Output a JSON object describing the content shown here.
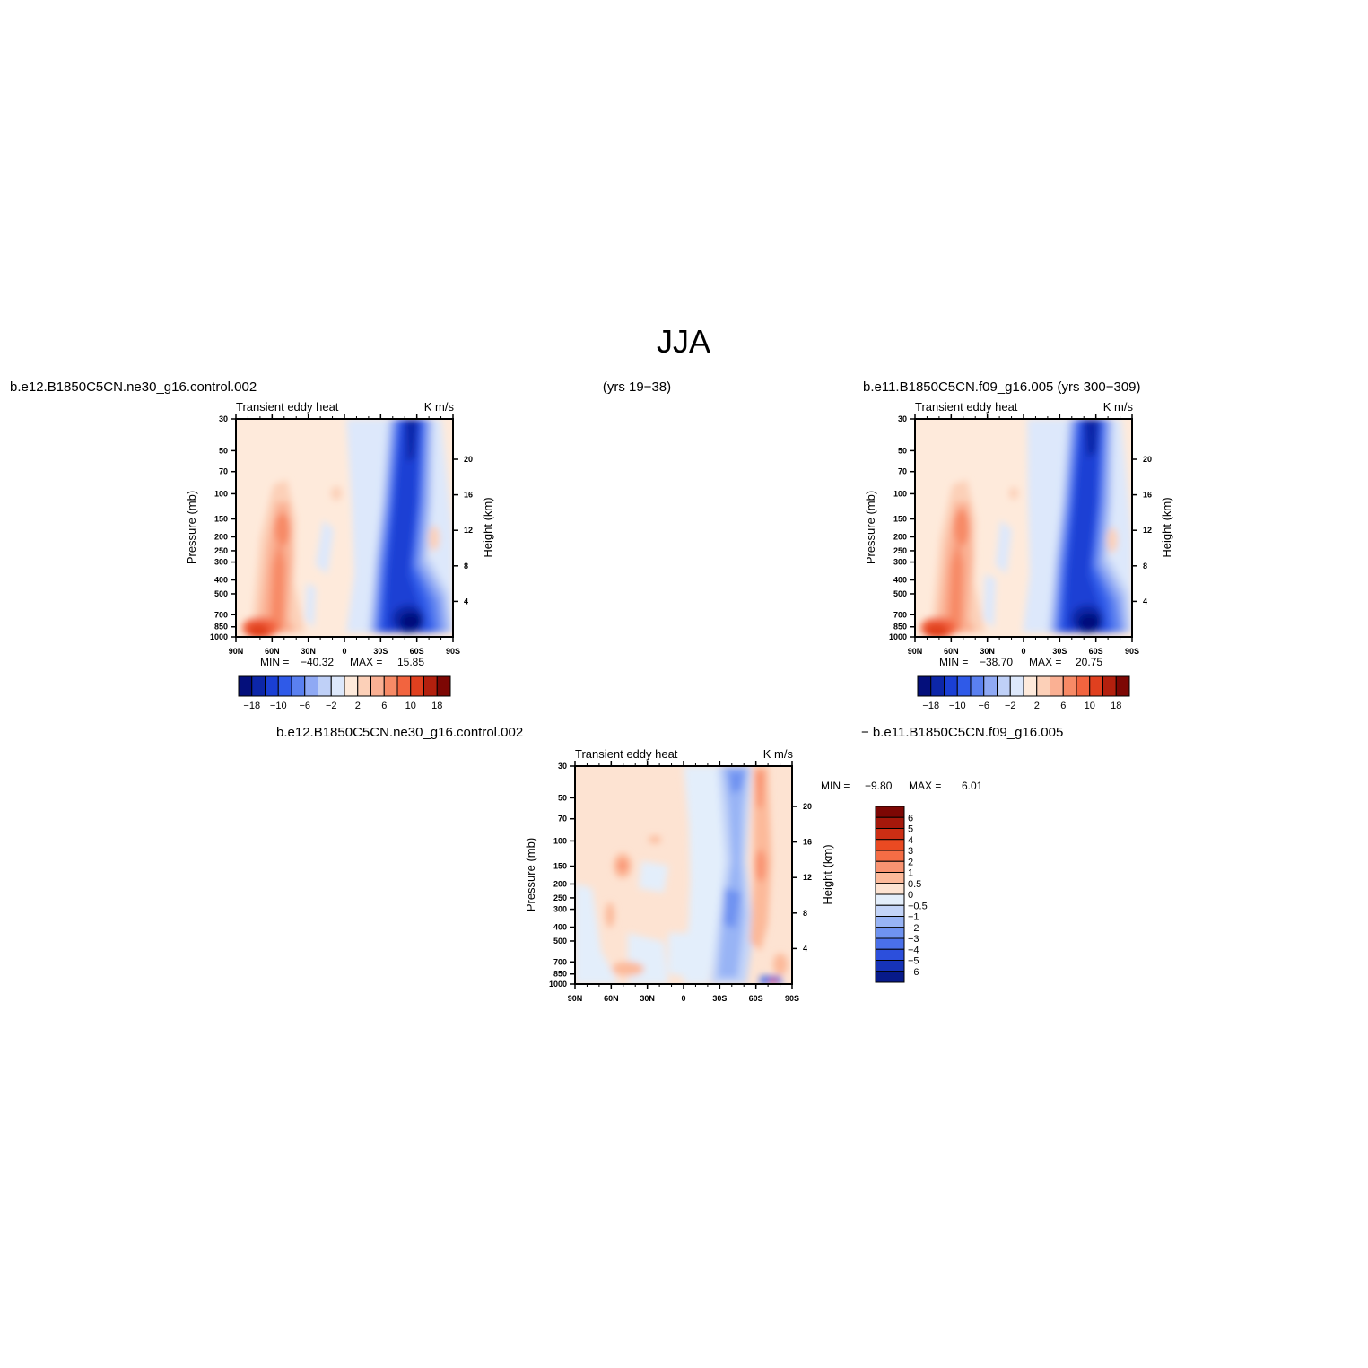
{
  "figure": {
    "title": "JJA",
    "panel1_caption": "b.e12.B1850C5CN.ne30_g16.control.002",
    "years_left": "(yrs 19−38)",
    "panel2_caption": "b.e11.B1850C5CN.f09_g16.005 (yrs 300−309)",
    "diff_caption_left": "b.e12.B1850C5CN.ne30_g16.control.002",
    "diff_caption_right": "− b.e11.B1850C5CN.f09_g16.005"
  },
  "chart_data": [
    {
      "type": "heatmap",
      "panel": "control",
      "title": "Transient eddy heat",
      "units": "K m/s",
      "ylabel": "Pressure (mb)",
      "ylabel_right": "Height (km)",
      "x_ticks": [
        "90N",
        "60N",
        "30N",
        "0",
        "30S",
        "60S",
        "90S"
      ],
      "y_ticks": [
        30,
        50,
        70,
        100,
        150,
        200,
        250,
        300,
        400,
        500,
        700,
        850,
        1000
      ],
      "y_right_ticks": [
        20,
        16,
        12,
        8,
        4
      ],
      "ylim": [
        1000,
        30
      ],
      "y_scale": "log",
      "min_label": "MIN =",
      "min": "−40.32",
      "max_label": "MAX =",
      "max": "15.85",
      "features": [
        {
          "lat": 70,
          "p": 200,
          "value": 8
        },
        {
          "lat": 75,
          "p": 950,
          "value": 16
        },
        {
          "lat": 5,
          "p": 600,
          "value": 1
        },
        {
          "lat": -58,
          "p": 30,
          "value": -20
        },
        {
          "lat": -55,
          "p": 880,
          "value": -40
        },
        {
          "lat": -48,
          "p": 300,
          "value": -14
        },
        {
          "lat": -80,
          "p": 220,
          "value": 4
        }
      ],
      "colorbar": {
        "labels": [
          "−18",
          "−10",
          "−6",
          "−2",
          "2",
          "6",
          "10",
          "18"
        ],
        "colors": [
          "#040f7b",
          "#0c26a8",
          "#1a3fd4",
          "#2f5ae8",
          "#5a80f0",
          "#8fa9f4",
          "#bfd0f7",
          "#dde8fb",
          "#feeadb",
          "#fcd0b8",
          "#fab093",
          "#f78a66",
          "#f2643f",
          "#e0401f",
          "#b3200e",
          "#7d0704"
        ]
      }
    },
    {
      "type": "heatmap",
      "panel": "case",
      "title": "Transient eddy heat",
      "units": "K m/s",
      "ylabel": "Pressure (mb)",
      "ylabel_right": "Height (km)",
      "x_ticks": [
        "90N",
        "60N",
        "30N",
        "0",
        "30S",
        "60S",
        "90S"
      ],
      "y_ticks": [
        30,
        50,
        70,
        100,
        150,
        200,
        250,
        300,
        400,
        500,
        700,
        850,
        1000
      ],
      "y_right_ticks": [
        20,
        16,
        12,
        8,
        4
      ],
      "ylim": [
        1000,
        30
      ],
      "y_scale": "log",
      "min_label": "MIN =",
      "min": "−38.70",
      "max_label": "MAX =",
      "max": "20.75",
      "features": [
        {
          "lat": 70,
          "p": 190,
          "value": 10
        },
        {
          "lat": 75,
          "p": 950,
          "value": 20
        },
        {
          "lat": -58,
          "p": 30,
          "value": -22
        },
        {
          "lat": -52,
          "p": 880,
          "value": -38
        },
        {
          "lat": -46,
          "p": 300,
          "value": -14
        },
        {
          "lat": -80,
          "p": 230,
          "value": 3
        }
      ],
      "colorbar": {
        "labels": [
          "−18",
          "−10",
          "−6",
          "−2",
          "2",
          "6",
          "10",
          "18"
        ],
        "colors": [
          "#040f7b",
          "#0c26a8",
          "#1a3fd4",
          "#2f5ae8",
          "#5a80f0",
          "#8fa9f4",
          "#bfd0f7",
          "#dde8fb",
          "#feeadb",
          "#fcd0b8",
          "#fab093",
          "#f78a66",
          "#f2643f",
          "#e0401f",
          "#b3200e",
          "#7d0704"
        ]
      }
    },
    {
      "type": "heatmap",
      "panel": "difference",
      "title": "Transient eddy heat",
      "units": "K m/s",
      "ylabel": "Pressure (mb)",
      "ylabel_right": "Height (km)",
      "x_ticks": [
        "90N",
        "60N",
        "30N",
        "0",
        "30S",
        "60S",
        "90S"
      ],
      "y_ticks": [
        30,
        50,
        70,
        100,
        150,
        200,
        250,
        300,
        400,
        500,
        700,
        850,
        1000
      ],
      "y_right_ticks": [
        20,
        16,
        12,
        8,
        4
      ],
      "ylim": [
        1000,
        30
      ],
      "y_scale": "log",
      "min_label": "MIN =",
      "min": "−9.80",
      "max_label": "MAX =",
      "max": "6.01",
      "features": [
        {
          "lat": -48,
          "p": 40,
          "value": -3
        },
        {
          "lat": -42,
          "p": 350,
          "value": -2.5
        },
        {
          "lat": -62,
          "p": 120,
          "value": 2
        },
        {
          "lat": -60,
          "p": 500,
          "value": 1.5
        },
        {
          "lat": 55,
          "p": 150,
          "value": 1
        },
        {
          "lat": 15,
          "p": 200,
          "value": -0.5
        }
      ],
      "colorbar": {
        "labels": [
          "6",
          "5",
          "4",
          "3",
          "2",
          "1",
          "0.5",
          "0",
          "−0.5",
          "−1",
          "−2",
          "−3",
          "−4",
          "−5",
          "−6"
        ],
        "colors": [
          "#7d0704",
          "#a5180b",
          "#cc2e14",
          "#ea4a22",
          "#f56d45",
          "#f99371",
          "#fcb99a",
          "#fde3d2",
          "#e3eefb",
          "#c3d4f8",
          "#98b4f5",
          "#6f93f1",
          "#4a70ea",
          "#2c4fdc",
          "#1633b8",
          "#071a8a"
        ]
      }
    }
  ]
}
